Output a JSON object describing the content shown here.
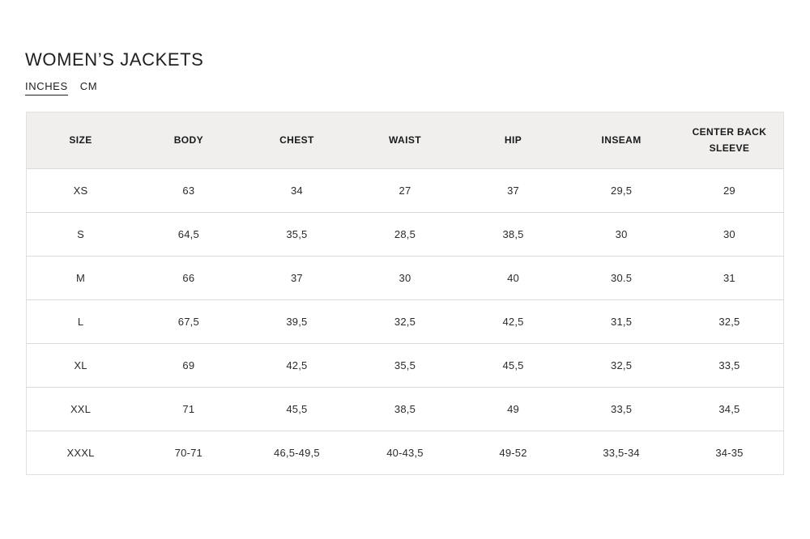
{
  "page": {
    "title": "WOMEN’S JACKETS"
  },
  "units": {
    "inches_label": "INCHES",
    "cm_label": "CM",
    "active_unit": "INCHES"
  },
  "colors": {
    "header_background": "#f0efee",
    "row_divider": "#dcdad9",
    "text": "#1a1a1a"
  },
  "table": {
    "headers": [
      "SIZE",
      "BODY",
      "CHEST",
      "WAIST",
      "HIP",
      "INSEAM",
      "CENTER BACK SLEEVE"
    ],
    "rows": [
      [
        "XS",
        "63",
        "34",
        "27",
        "37",
        "29,5",
        "29"
      ],
      [
        "S",
        "64,5",
        "35,5",
        "28,5",
        "38,5",
        "30",
        "30"
      ],
      [
        "M",
        "66",
        "37",
        "30",
        "40",
        "30.5",
        "31"
      ],
      [
        "L",
        "67,5",
        "39,5",
        "32,5",
        "42,5",
        "31,5",
        "32,5"
      ],
      [
        "XL",
        "69",
        "42,5",
        "35,5",
        "45,5",
        "32,5",
        "33,5"
      ],
      [
        "XXL",
        "71",
        "45,5",
        "38,5",
        "49",
        "33,5",
        "34,5"
      ],
      [
        "XXXL",
        "70-71",
        "46,5-49,5",
        "40-43,5",
        "49-52",
        "33,5-34",
        "34-35"
      ]
    ]
  }
}
